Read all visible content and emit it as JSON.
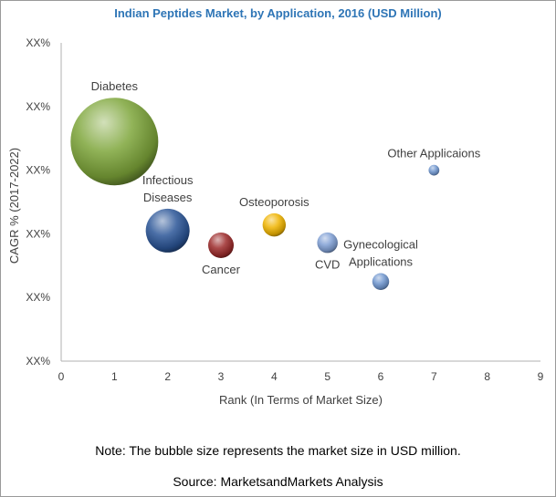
{
  "chart_data": {
    "type": "bubble",
    "title": "Indian Peptides Market, by Application, 2016 (USD Million)",
    "xlabel": "Rank (In Terms of Market Size)",
    "ylabel": "CAGR % (2017-2022)",
    "xlim": [
      0,
      9
    ],
    "x_ticks": [
      "0",
      "1",
      "2",
      "3",
      "4",
      "5",
      "6",
      "7",
      "8",
      "9"
    ],
    "ylim": [
      0,
      5
    ],
    "y_ticks": [
      "XX%",
      "XX%",
      "XX%",
      "XX%",
      "XX%",
      "XX%"
    ],
    "grid": false,
    "points": [
      {
        "name": "Diabetes",
        "label_lines": [
          "Diabetes"
        ],
        "x": 1,
        "y": 3.45,
        "size": 100,
        "color": "#7ea63a",
        "label_pos": "above"
      },
      {
        "name": "Infectious Diseases",
        "label_lines": [
          "Infectious",
          "Diseases"
        ],
        "x": 2,
        "y": 2.05,
        "size": 25,
        "color": "#2b5597",
        "label_pos": "above"
      },
      {
        "name": "Cancer",
        "label_lines": [
          "Cancer"
        ],
        "x": 3,
        "y": 1.82,
        "size": 8.5,
        "color": "#9c2a2a",
        "label_pos": "below"
      },
      {
        "name": "Osteoporosis",
        "label_lines": [
          "Osteoporosis"
        ],
        "x": 4,
        "y": 2.14,
        "size": 7,
        "color": "#f0b400",
        "label_pos": "above"
      },
      {
        "name": "CVD",
        "label_lines": [
          "CVD"
        ],
        "x": 5,
        "y": 1.86,
        "size": 5.5,
        "color": "#7f9fd3",
        "label_pos": "below"
      },
      {
        "name": "Gynecological Applications",
        "label_lines": [
          "Gynecological",
          "Applications"
        ],
        "x": 6,
        "y": 1.25,
        "size": 3.7,
        "color": "#6f96cf",
        "label_pos": "above"
      },
      {
        "name": "Other Applicaions",
        "label_lines": [
          "Other Applicaions"
        ],
        "x": 7,
        "y": 3.0,
        "size": 1.5,
        "color": "#6f96cf",
        "label_pos": "above"
      }
    ]
  },
  "note": "Note: The bubble size represents the market size in USD million.",
  "source": "Source: MarketsandMarkets Analysis"
}
